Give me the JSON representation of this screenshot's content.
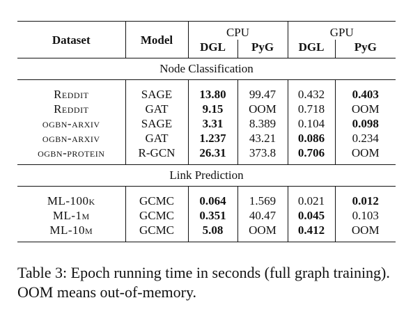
{
  "table": {
    "headers": {
      "dataset": "Dataset",
      "model": "Model",
      "cpu": "CPU",
      "gpu": "GPU",
      "cpu_dgl": "DGL",
      "cpu_pyg": "PyG",
      "gpu_dgl": "DGL",
      "gpu_pyg": "PyG"
    },
    "sections": [
      {
        "title": "Node Classification",
        "rows": [
          {
            "dataset": "Reddit",
            "model": "SAGE",
            "cpu_dgl": "13.80",
            "cpu_pyg": "99.47",
            "gpu_dgl": "0.432",
            "gpu_pyg": "0.403",
            "bold": [
              "cpu_dgl",
              "gpu_pyg"
            ]
          },
          {
            "dataset": "Reddit",
            "model": "GAT",
            "cpu_dgl": "9.15",
            "cpu_pyg": "OOM",
            "gpu_dgl": "0.718",
            "gpu_pyg": "OOM",
            "bold": [
              "cpu_dgl"
            ]
          },
          {
            "dataset": "ogbn-arxiv",
            "model": "SAGE",
            "cpu_dgl": "3.31",
            "cpu_pyg": "8.389",
            "gpu_dgl": "0.104",
            "gpu_pyg": "0.098",
            "bold": [
              "cpu_dgl",
              "gpu_pyg"
            ]
          },
          {
            "dataset": "ogbn-arxiv",
            "model": "GAT",
            "cpu_dgl": "1.237",
            "cpu_pyg": "43.21",
            "gpu_dgl": "0.086",
            "gpu_pyg": "0.234",
            "bold": [
              "cpu_dgl",
              "gpu_dgl"
            ]
          },
          {
            "dataset": "ogbn-protein",
            "model": "R-GCN",
            "cpu_dgl": "26.31",
            "cpu_pyg": "373.8",
            "gpu_dgl": "0.706",
            "gpu_pyg": "OOM",
            "bold": [
              "cpu_dgl",
              "gpu_dgl"
            ]
          }
        ]
      },
      {
        "title": "Link Prediction",
        "rows": [
          {
            "dataset": "ML-100k",
            "model": "GCMC",
            "cpu_dgl": "0.064",
            "cpu_pyg": "1.569",
            "gpu_dgl": "0.021",
            "gpu_pyg": "0.012",
            "bold": [
              "cpu_dgl",
              "gpu_pyg"
            ]
          },
          {
            "dataset": "ML-1m",
            "model": "GCMC",
            "cpu_dgl": "0.351",
            "cpu_pyg": "40.47",
            "gpu_dgl": "0.045",
            "gpu_pyg": "0.103",
            "bold": [
              "cpu_dgl",
              "gpu_dgl"
            ]
          },
          {
            "dataset": "ML-10m",
            "model": "GCMC",
            "cpu_dgl": "5.08",
            "cpu_pyg": "OOM",
            "gpu_dgl": "0.412",
            "gpu_pyg": "OOM",
            "bold": [
              "cpu_dgl",
              "gpu_dgl"
            ]
          }
        ]
      }
    ]
  },
  "caption": "Table 3: Epoch running time in seconds (full graph training). OOM means out-of-memory."
}
